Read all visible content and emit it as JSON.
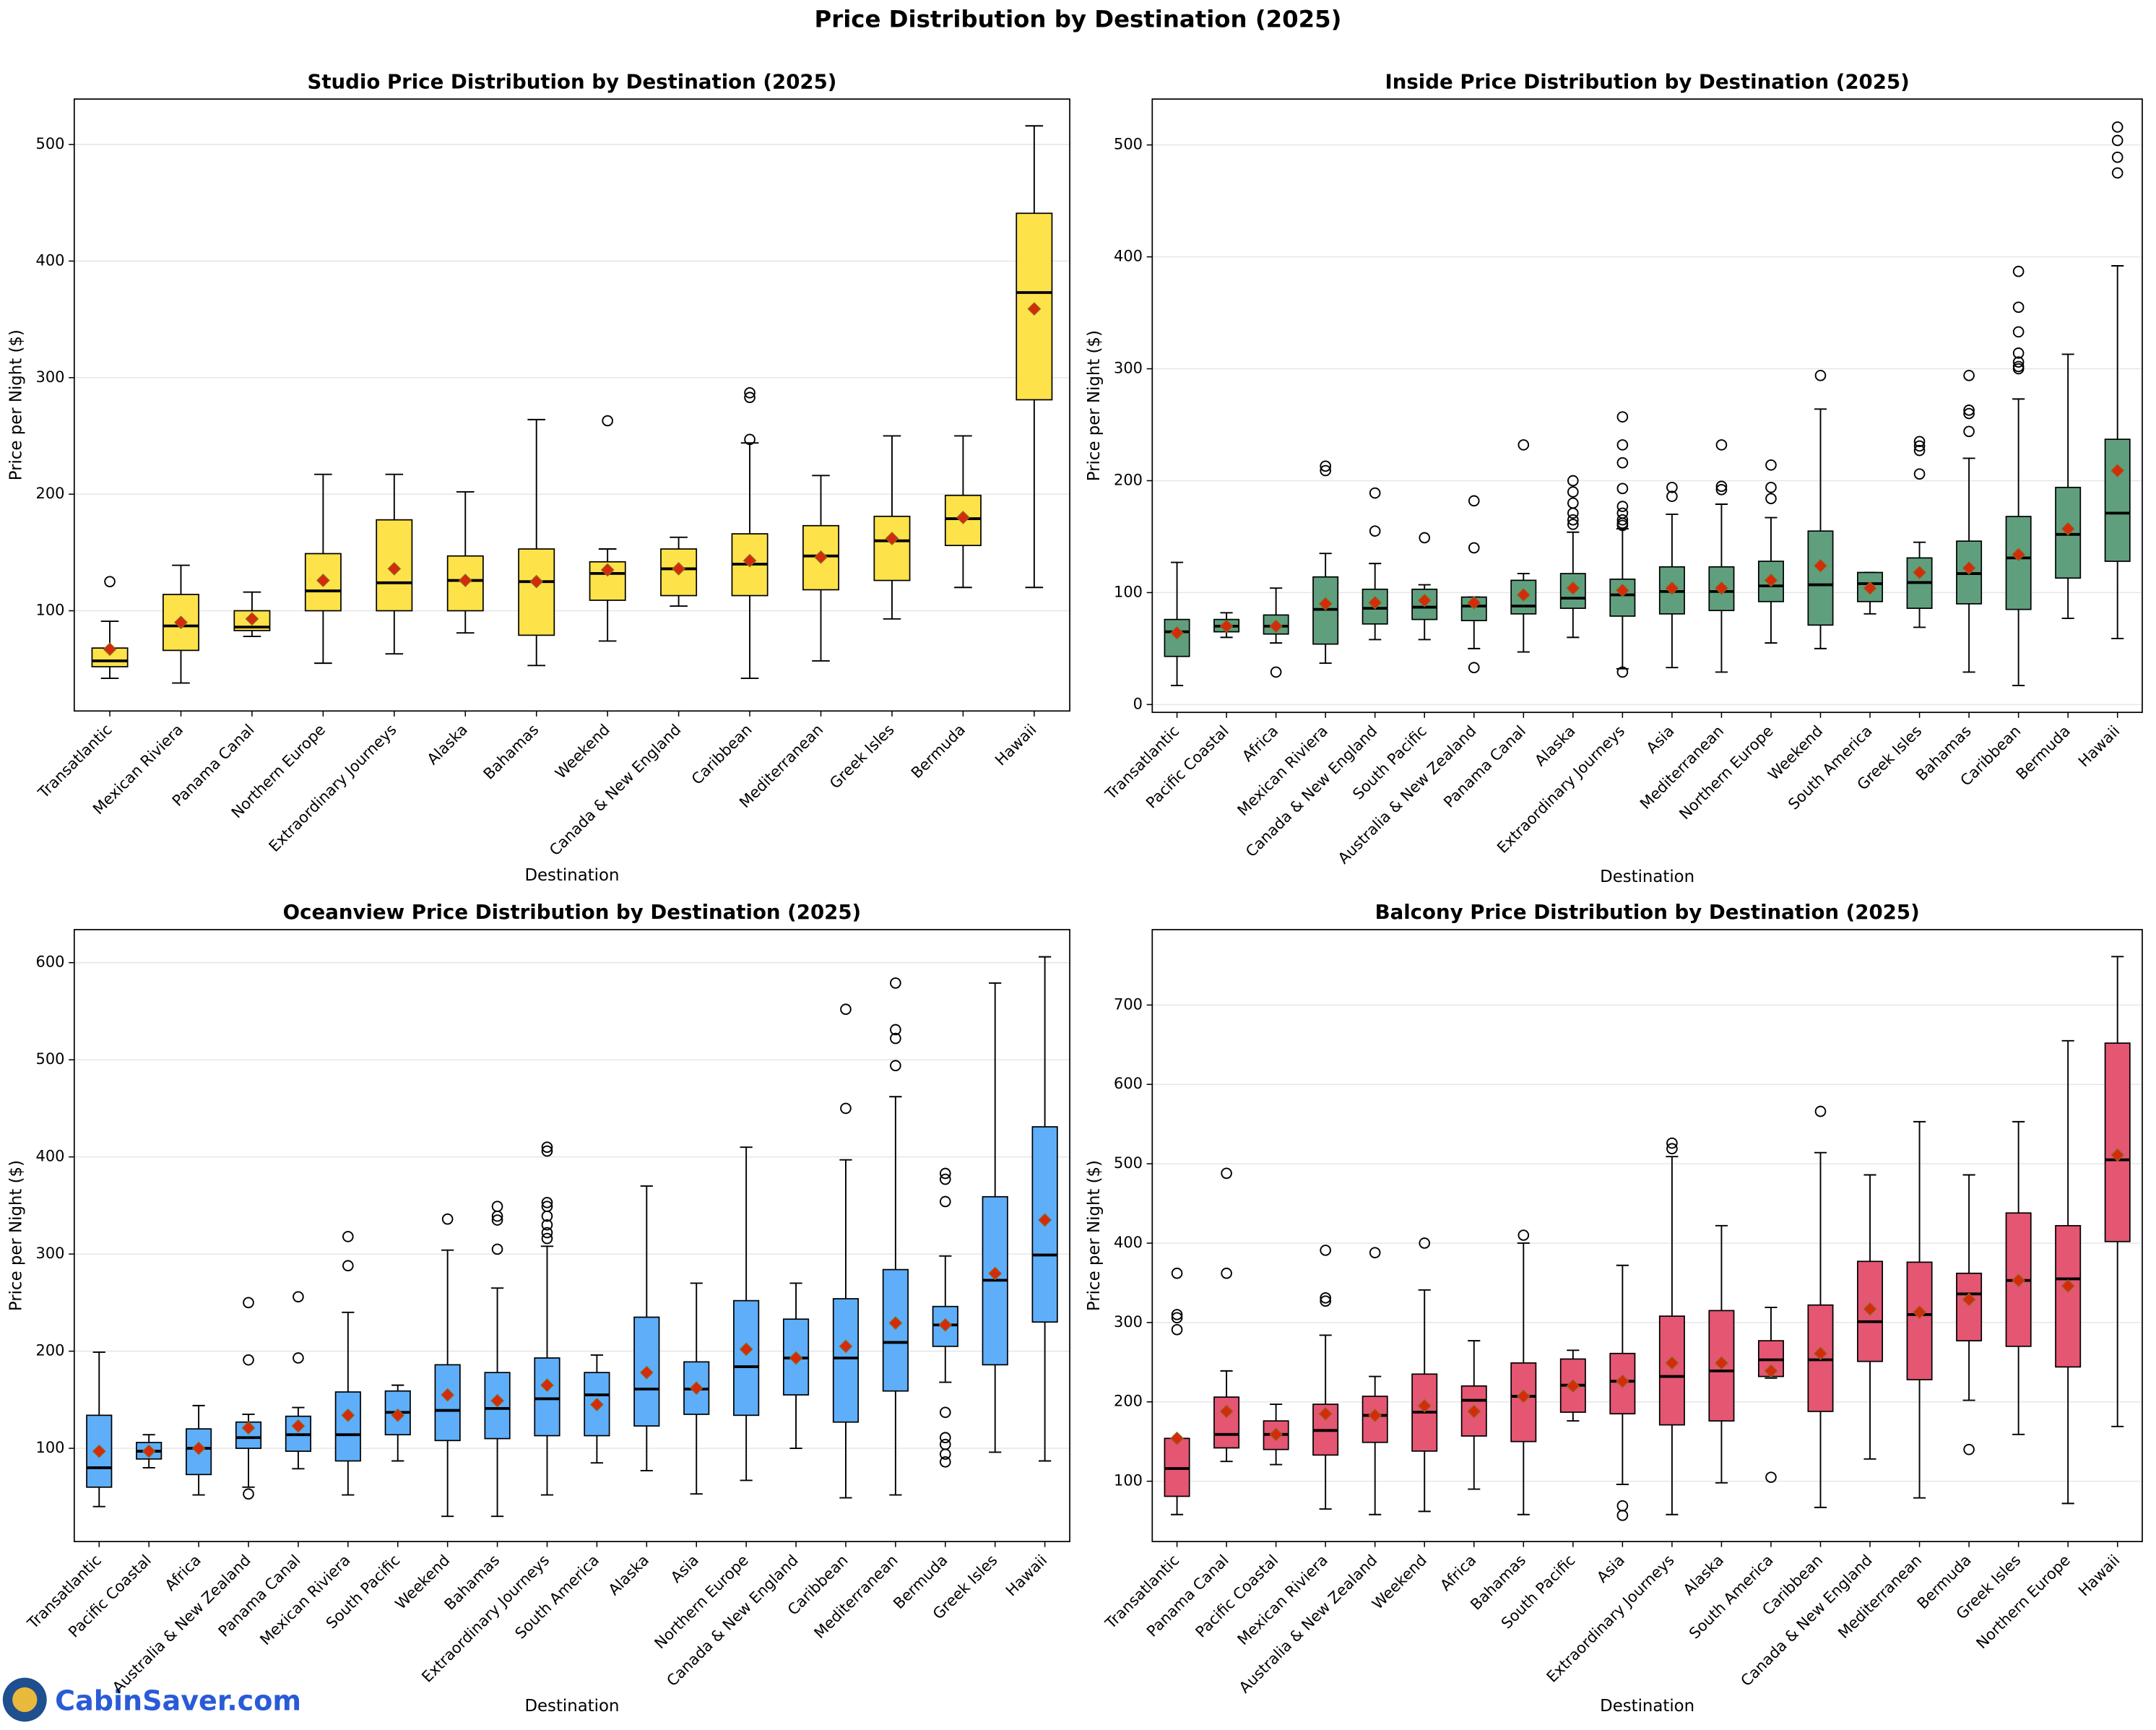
{
  "title": "Price Distribution by Destination (2025)",
  "logo_text": "CabinSaver.com",
  "chart_data": [
    {
      "type": "box",
      "title": "Studio Price Distribution by Destination (2025)",
      "x_label": "Destination",
      "y_label": "Price per Night ($)",
      "color": "#fde24a",
      "ylim": [
        14,
        539
      ],
      "yticks": [
        100,
        200,
        300,
        400,
        500
      ],
      "grid": true,
      "categories": [
        "Transatlantic",
        "Mexican Riviera",
        "Panama Canal",
        "Northern Europe",
        "Extraordinary Journeys",
        "Alaska",
        "Bahamas",
        "Weekend",
        "Canada & New England",
        "Caribbean",
        "Mediterranean",
        "Greek Isles",
        "Bermuda",
        "Hawaii"
      ],
      "boxes": [
        {
          "whislo": 42,
          "q1": 52,
          "med": 57,
          "q3": 68,
          "whishi": 91,
          "mean": 67,
          "fliers": [
            125
          ]
        },
        {
          "whislo": 38,
          "q1": 66,
          "med": 87,
          "q3": 114,
          "whishi": 139,
          "mean": 90,
          "fliers": []
        },
        {
          "whislo": 78,
          "q1": 83,
          "med": 86,
          "q3": 100,
          "whishi": 116,
          "mean": 93,
          "fliers": []
        },
        {
          "whislo": 55,
          "q1": 100,
          "med": 117,
          "q3": 149,
          "whishi": 217,
          "mean": 126,
          "fliers": []
        },
        {
          "whislo": 63,
          "q1": 100,
          "med": 124,
          "q3": 178,
          "whishi": 217,
          "mean": 136,
          "fliers": []
        },
        {
          "whislo": 81,
          "q1": 100,
          "med": 126,
          "q3": 147,
          "whishi": 202,
          "mean": 126,
          "fliers": []
        },
        {
          "whislo": 53,
          "q1": 79,
          "med": 125,
          "q3": 153,
          "whishi": 264,
          "mean": 125,
          "fliers": []
        },
        {
          "whislo": 74,
          "q1": 109,
          "med": 132,
          "q3": 142,
          "whishi": 153,
          "mean": 135,
          "fliers": [
            263
          ]
        },
        {
          "whislo": 104,
          "q1": 113,
          "med": 136,
          "q3": 153,
          "whishi": 163,
          "mean": 136,
          "fliers": []
        },
        {
          "whislo": 42,
          "q1": 113,
          "med": 140,
          "q3": 166,
          "whishi": 244,
          "mean": 143,
          "fliers": [
            287,
            283,
            247
          ]
        },
        {
          "whislo": 57,
          "q1": 118,
          "med": 147,
          "q3": 173,
          "whishi": 216,
          "mean": 146,
          "fliers": []
        },
        {
          "whislo": 93,
          "q1": 126,
          "med": 160,
          "q3": 181,
          "whishi": 250,
          "mean": 162,
          "fliers": []
        },
        {
          "whislo": 120,
          "q1": 156,
          "med": 179,
          "q3": 199,
          "whishi": 250,
          "mean": 180,
          "fliers": []
        },
        {
          "whislo": 120,
          "q1": 281,
          "med": 373,
          "q3": 441,
          "whishi": 516,
          "mean": 359,
          "fliers": []
        }
      ]
    },
    {
      "type": "box",
      "title": "Inside Price Distribution by Destination (2025)",
      "x_label": "Destination",
      "y_label": "Price per Night ($)",
      "color": "#609f7e",
      "ylim": [
        -7,
        541
      ],
      "yticks": [
        0,
        100,
        200,
        300,
        400,
        500
      ],
      "grid": true,
      "categories": [
        "Transatlantic",
        "Pacific Coastal",
        "Africa",
        "Mexican Riviera",
        "Canada & New England",
        "South Pacific",
        "Australia & New Zealand",
        "Panama Canal",
        "Alaska",
        "Extraordinary Journeys",
        "Asia",
        "Mediterranean",
        "Northern Europe",
        "Weekend",
        "South America",
        "Greek Isles",
        "Bahamas",
        "Caribbean",
        "Bermuda",
        "Hawaii"
      ],
      "boxes": [
        {
          "whislo": 17,
          "q1": 43,
          "med": 65,
          "q3": 76,
          "whishi": 127,
          "mean": 64,
          "fliers": []
        },
        {
          "whislo": 60,
          "q1": 65,
          "med": 70,
          "q3": 76,
          "whishi": 82,
          "mean": 70,
          "fliers": []
        },
        {
          "whislo": 55,
          "q1": 63,
          "med": 70,
          "q3": 80,
          "whishi": 104,
          "mean": 70,
          "fliers": [
            29
          ]
        },
        {
          "whislo": 37,
          "q1": 54,
          "med": 85,
          "q3": 114,
          "whishi": 135,
          "mean": 90,
          "fliers": [
            213,
            209
          ]
        },
        {
          "whislo": 58,
          "q1": 72,
          "med": 86,
          "q3": 103,
          "whishi": 126,
          "mean": 91,
          "fliers": [
            189,
            155
          ]
        },
        {
          "whislo": 58,
          "q1": 76,
          "med": 87,
          "q3": 103,
          "whishi": 107,
          "mean": 93,
          "fliers": [
            149
          ]
        },
        {
          "whislo": 50,
          "q1": 75,
          "med": 88,
          "q3": 96,
          "whishi": 96,
          "mean": 91,
          "fliers": [
            182,
            140,
            33
          ]
        },
        {
          "whislo": 47,
          "q1": 81,
          "med": 88,
          "q3": 111,
          "whishi": 117,
          "mean": 98,
          "fliers": [
            232
          ]
        },
        {
          "whislo": 60,
          "q1": 86,
          "med": 95,
          "q3": 117,
          "whishi": 154,
          "mean": 104,
          "fliers": [
            200,
            190,
            180,
            171,
            165,
            161
          ]
        },
        {
          "whislo": 32,
          "q1": 79,
          "med": 98,
          "q3": 112,
          "whishi": 157,
          "mean": 102,
          "fliers": [
            257,
            232,
            216,
            193,
            177,
            171,
            165,
            162,
            160,
            29
          ]
        },
        {
          "whislo": 33,
          "q1": 81,
          "med": 101,
          "q3": 123,
          "whishi": 170,
          "mean": 104,
          "fliers": [
            194,
            186
          ]
        },
        {
          "whislo": 29,
          "q1": 84,
          "med": 101,
          "q3": 123,
          "whishi": 179,
          "mean": 104,
          "fliers": [
            232,
            195,
            192
          ]
        },
        {
          "whislo": 55,
          "q1": 92,
          "med": 106,
          "q3": 128,
          "whishi": 167,
          "mean": 111,
          "fliers": [
            214,
            194,
            184
          ]
        },
        {
          "whislo": 50,
          "q1": 71,
          "med": 107,
          "q3": 155,
          "whishi": 264,
          "mean": 124,
          "fliers": [
            294
          ]
        },
        {
          "whislo": 81,
          "q1": 92,
          "med": 108,
          "q3": 118,
          "whishi": 118,
          "mean": 104,
          "fliers": []
        },
        {
          "whislo": 69,
          "q1": 86,
          "med": 109,
          "q3": 131,
          "whishi": 145,
          "mean": 118,
          "fliers": [
            235,
            231,
            227,
            206
          ]
        },
        {
          "whislo": 29,
          "q1": 90,
          "med": 117,
          "q3": 146,
          "whishi": 220,
          "mean": 122,
          "fliers": [
            294,
            263,
            260,
            244
          ]
        },
        {
          "whislo": 17,
          "q1": 85,
          "med": 131,
          "q3": 168,
          "whishi": 273,
          "mean": 134,
          "fliers": [
            387,
            355,
            333,
            314,
            306,
            302,
            300
          ]
        },
        {
          "whislo": 77,
          "q1": 113,
          "med": 152,
          "q3": 194,
          "whishi": 313,
          "mean": 157,
          "fliers": []
        },
        {
          "whislo": 59,
          "q1": 128,
          "med": 171,
          "q3": 237,
          "whishi": 392,
          "mean": 209,
          "fliers": [
            516,
            504,
            489,
            475
          ]
        }
      ]
    },
    {
      "type": "box",
      "title": "Oceanview Price Distribution by Destination (2025)",
      "x_label": "Destination",
      "y_label": "Price per Night ($)",
      "color": "#5eaef9",
      "ylim": [
        4,
        634
      ],
      "yticks": [
        100,
        200,
        300,
        400,
        500,
        600
      ],
      "grid": true,
      "categories": [
        "Transatlantic",
        "Pacific Coastal",
        "Africa",
        "Australia & New Zealand",
        "Panama Canal",
        "Mexican Riviera",
        "South Pacific",
        "Weekend",
        "Bahamas",
        "Extraordinary Journeys",
        "South America",
        "Alaska",
        "Asia",
        "Northern Europe",
        "Canada & New England",
        "Caribbean",
        "Mediterranean",
        "Bermuda",
        "Greek Isles",
        "Hawaii"
      ],
      "boxes": [
        {
          "whislo": 40,
          "q1": 60,
          "med": 80,
          "q3": 134,
          "whishi": 199,
          "mean": 97,
          "fliers": []
        },
        {
          "whislo": 80,
          "q1": 89,
          "med": 97,
          "q3": 106,
          "whishi": 114,
          "mean": 97,
          "fliers": []
        },
        {
          "whislo": 52,
          "q1": 73,
          "med": 100,
          "q3": 120,
          "whishi": 144,
          "mean": 100,
          "fliers": []
        },
        {
          "whislo": 60,
          "q1": 100,
          "med": 111,
          "q3": 127,
          "whishi": 135,
          "mean": 121,
          "fliers": [
            250,
            191,
            53
          ]
        },
        {
          "whislo": 79,
          "q1": 97,
          "med": 114,
          "q3": 133,
          "whishi": 142,
          "mean": 123,
          "fliers": [
            256,
            193
          ]
        },
        {
          "whislo": 52,
          "q1": 87,
          "med": 114,
          "q3": 158,
          "whishi": 240,
          "mean": 134,
          "fliers": [
            318,
            288
          ]
        },
        {
          "whislo": 87,
          "q1": 114,
          "med": 137,
          "q3": 159,
          "whishi": 165,
          "mean": 134,
          "fliers": []
        },
        {
          "whislo": 30,
          "q1": 108,
          "med": 139,
          "q3": 186,
          "whishi": 304,
          "mean": 155,
          "fliers": [
            336
          ]
        },
        {
          "whislo": 30,
          "q1": 110,
          "med": 141,
          "q3": 178,
          "whishi": 265,
          "mean": 149,
          "fliers": [
            349,
            339,
            335,
            305
          ]
        },
        {
          "whislo": 52,
          "q1": 113,
          "med": 151,
          "q3": 193,
          "whishi": 308,
          "mean": 165,
          "fliers": [
            410,
            406,
            353,
            349,
            339,
            330,
            322,
            316
          ]
        },
        {
          "whislo": 85,
          "q1": 113,
          "med": 155,
          "q3": 178,
          "whishi": 196,
          "mean": 145,
          "fliers": []
        },
        {
          "whislo": 77,
          "q1": 123,
          "med": 161,
          "q3": 235,
          "whishi": 370,
          "mean": 178,
          "fliers": []
        },
        {
          "whislo": 53,
          "q1": 135,
          "med": 161,
          "q3": 189,
          "whishi": 270,
          "mean": 162,
          "fliers": []
        },
        {
          "whislo": 67,
          "q1": 134,
          "med": 184,
          "q3": 252,
          "whishi": 410,
          "mean": 202,
          "fliers": []
        },
        {
          "whislo": 100,
          "q1": 155,
          "med": 193,
          "q3": 233,
          "whishi": 270,
          "mean": 193,
          "fliers": []
        },
        {
          "whislo": 49,
          "q1": 127,
          "med": 193,
          "q3": 254,
          "whishi": 397,
          "mean": 205,
          "fliers": [
            552,
            450
          ]
        },
        {
          "whislo": 52,
          "q1": 159,
          "med": 209,
          "q3": 284,
          "whishi": 462,
          "mean": 229,
          "fliers": [
            579,
            531,
            522,
            494
          ]
        },
        {
          "whislo": 168,
          "q1": 205,
          "med": 227,
          "q3": 246,
          "whishi": 298,
          "mean": 227,
          "fliers": [
            383,
            377,
            354,
            137,
            111,
            104,
            94,
            86
          ]
        },
        {
          "whislo": 96,
          "q1": 186,
          "med": 273,
          "q3": 359,
          "whishi": 579,
          "mean": 280,
          "fliers": []
        },
        {
          "whislo": 87,
          "q1": 230,
          "med": 299,
          "q3": 431,
          "whishi": 606,
          "mean": 335,
          "fliers": []
        }
      ]
    },
    {
      "type": "box",
      "title": "Balcony Price Distribution by Destination (2025)",
      "x_label": "Destination",
      "y_label": "Price per Night ($)",
      "color": "#e45672",
      "ylim": [
        24,
        795
      ],
      "yticks": [
        100,
        200,
        300,
        400,
        500,
        600,
        700
      ],
      "grid": true,
      "categories": [
        "Transatlantic",
        "Panama Canal",
        "Pacific Coastal",
        "Mexican Riviera",
        "Australia & New Zealand",
        "Weekend",
        "Africa",
        "Bahamas",
        "South Pacific",
        "Asia",
        "Extraordinary Journeys",
        "Alaska",
        "South America",
        "Caribbean",
        "Canada & New England",
        "Mediterranean",
        "Bermuda",
        "Greek Isles",
        "Northern Europe",
        "Hawaii"
      ],
      "boxes": [
        {
          "whislo": 58,
          "q1": 81,
          "med": 116,
          "q3": 154,
          "whishi": 154,
          "mean": 154,
          "fliers": [
            362,
            310,
            306,
            291
          ]
        },
        {
          "whislo": 125,
          "q1": 142,
          "med": 159,
          "q3": 206,
          "whishi": 239,
          "mean": 188,
          "fliers": [
            488,
            362
          ]
        },
        {
          "whislo": 121,
          "q1": 140,
          "med": 159,
          "q3": 176,
          "whishi": 197,
          "mean": 159,
          "fliers": []
        },
        {
          "whislo": 65,
          "q1": 133,
          "med": 164,
          "q3": 197,
          "whishi": 284,
          "mean": 185,
          "fliers": [
            391,
            331,
            327
          ]
        },
        {
          "whislo": 58,
          "q1": 149,
          "med": 183,
          "q3": 207,
          "whishi": 232,
          "mean": 183,
          "fliers": [
            388
          ]
        },
        {
          "whislo": 62,
          "q1": 138,
          "med": 187,
          "q3": 235,
          "whishi": 341,
          "mean": 195,
          "fliers": [
            400
          ]
        },
        {
          "whislo": 90,
          "q1": 157,
          "med": 202,
          "q3": 220,
          "whishi": 277,
          "mean": 188,
          "fliers": []
        },
        {
          "whislo": 58,
          "q1": 150,
          "med": 207,
          "q3": 249,
          "whishi": 400,
          "mean": 207,
          "fliers": [
            410
          ]
        },
        {
          "whislo": 176,
          "q1": 187,
          "med": 221,
          "q3": 254,
          "whishi": 265,
          "mean": 220,
          "fliers": []
        },
        {
          "whislo": 96,
          "q1": 185,
          "med": 226,
          "q3": 261,
          "whishi": 372,
          "mean": 226,
          "fliers": [
            69,
            57
          ]
        },
        {
          "whislo": 58,
          "q1": 171,
          "med": 232,
          "q3": 308,
          "whishi": 509,
          "mean": 249,
          "fliers": [
            526,
            519
          ]
        },
        {
          "whislo": 98,
          "q1": 176,
          "med": 239,
          "q3": 315,
          "whishi": 422,
          "mean": 249,
          "fliers": []
        },
        {
          "whislo": 230,
          "q1": 232,
          "med": 253,
          "q3": 277,
          "whishi": 319,
          "mean": 239,
          "fliers": [
            105
          ]
        },
        {
          "whislo": 67,
          "q1": 188,
          "med": 253,
          "q3": 322,
          "whishi": 514,
          "mean": 261,
          "fliers": [
            566
          ]
        },
        {
          "whislo": 128,
          "q1": 251,
          "med": 301,
          "q3": 377,
          "whishi": 486,
          "mean": 317,
          "fliers": []
        },
        {
          "whislo": 79,
          "q1": 228,
          "med": 310,
          "q3": 376,
          "whishi": 553,
          "mean": 313,
          "fliers": []
        },
        {
          "whislo": 202,
          "q1": 277,
          "med": 336,
          "q3": 362,
          "whishi": 486,
          "mean": 329,
          "fliers": [
            140
          ]
        },
        {
          "whislo": 159,
          "q1": 270,
          "med": 353,
          "q3": 438,
          "whishi": 553,
          "mean": 353,
          "fliers": []
        },
        {
          "whislo": 72,
          "q1": 244,
          "med": 355,
          "q3": 422,
          "whishi": 655,
          "mean": 346,
          "fliers": []
        },
        {
          "whislo": 169,
          "q1": 402,
          "med": 505,
          "q3": 652,
          "whishi": 761,
          "mean": 511,
          "fliers": []
        }
      ]
    }
  ]
}
